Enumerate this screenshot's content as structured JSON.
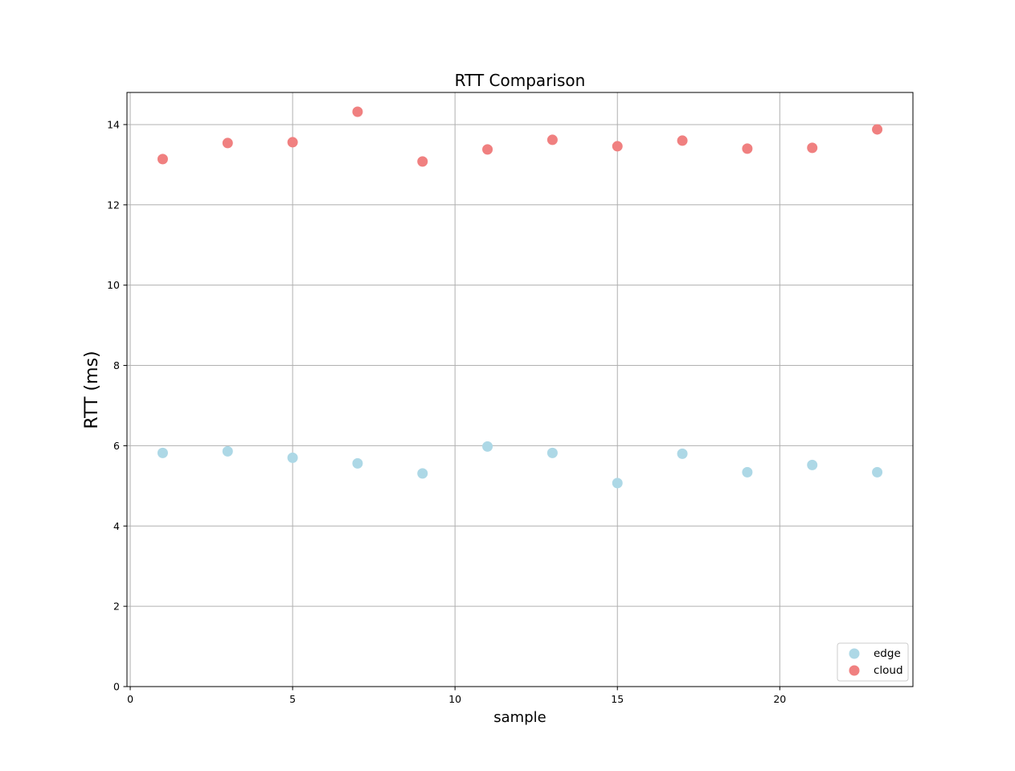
{
  "chart_data": {
    "type": "scatter",
    "title": "RTT Comparison",
    "xlabel": "sample",
    "ylabel": "RTT (ms)",
    "xlim": [
      -0.1,
      24.1
    ],
    "ylim": [
      0,
      14.8
    ],
    "xticks": [
      0,
      5,
      10,
      15,
      20
    ],
    "yticks": [
      0,
      2,
      4,
      6,
      8,
      10,
      12,
      14
    ],
    "grid": true,
    "legend_position": "lower-right",
    "series": [
      {
        "name": "edge",
        "color": "#add8e6",
        "x": [
          1,
          3,
          5,
          7,
          9,
          11,
          13,
          15,
          17,
          19,
          21,
          23
        ],
        "y": [
          5.82,
          5.86,
          5.7,
          5.56,
          5.31,
          5.98,
          5.82,
          5.07,
          5.8,
          5.34,
          5.52,
          5.34
        ]
      },
      {
        "name": "cloud",
        "color": "#f08080",
        "x": [
          1,
          3,
          5,
          7,
          9,
          11,
          13,
          15,
          17,
          19,
          21,
          23
        ],
        "y": [
          13.14,
          13.54,
          13.56,
          14.32,
          13.08,
          13.38,
          13.62,
          13.46,
          13.6,
          13.4,
          13.42,
          13.88
        ]
      }
    ]
  }
}
